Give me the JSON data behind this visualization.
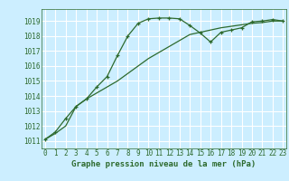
{
  "title": "Graphe pression niveau de la mer (hPa)",
  "bg_color": "#cceeff",
  "grid_color": "#ffffff",
  "line_color": "#2d6a2d",
  "x_ticks": [
    0,
    1,
    2,
    3,
    4,
    5,
    6,
    7,
    8,
    9,
    10,
    11,
    12,
    13,
    14,
    15,
    16,
    17,
    18,
    19,
    20,
    21,
    22,
    23
  ],
  "y_ticks": [
    1011,
    1012,
    1013,
    1014,
    1015,
    1016,
    1017,
    1018,
    1019
  ],
  "ylim": [
    1010.5,
    1019.8
  ],
  "xlim": [
    -0.3,
    23.3
  ],
  "series1_x": [
    0,
    1,
    2,
    3,
    4,
    5,
    6,
    7,
    8,
    9,
    10,
    11,
    12,
    13,
    14,
    15,
    16,
    17,
    18,
    19,
    20,
    21,
    22,
    23
  ],
  "series1_y": [
    1011.1,
    1011.6,
    1012.5,
    1013.3,
    1013.8,
    1014.6,
    1015.3,
    1016.7,
    1018.0,
    1018.85,
    1019.15,
    1019.2,
    1019.2,
    1019.15,
    1018.7,
    1018.2,
    1017.6,
    1018.25,
    1018.4,
    1018.55,
    1018.95,
    1019.0,
    1019.1,
    1019.0
  ],
  "series2_x": [
    0,
    1,
    2,
    3,
    4,
    5,
    6,
    7,
    8,
    9,
    10,
    11,
    12,
    13,
    14,
    15,
    16,
    17,
    18,
    19,
    20,
    21,
    22,
    23
  ],
  "series2_y": [
    1011.1,
    1011.5,
    1012.0,
    1013.3,
    1013.8,
    1014.2,
    1014.6,
    1015.0,
    1015.5,
    1016.0,
    1016.5,
    1016.9,
    1017.3,
    1017.7,
    1018.1,
    1018.25,
    1018.4,
    1018.55,
    1018.65,
    1018.75,
    1018.85,
    1018.9,
    1019.0,
    1019.0
  ],
  "tick_fontsize": 5.5,
  "label_fontsize": 6.5,
  "linewidth": 0.9,
  "markersize": 3.5,
  "markeredgewidth": 0.9
}
